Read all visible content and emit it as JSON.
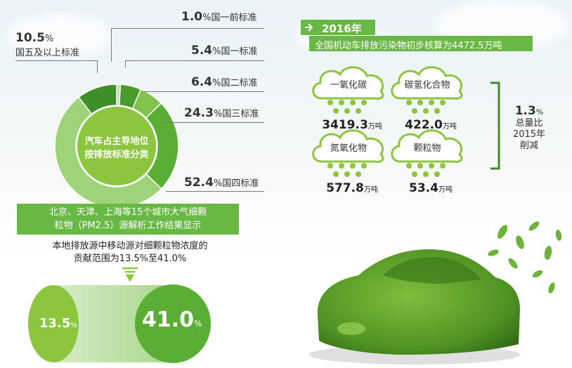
{
  "donut": {
    "center_line1": "汽车占主导地位",
    "center_line2": "按排放标准分类",
    "unit": "%",
    "slices": [
      {
        "value": "1.0",
        "label": "国一前标准",
        "color": "#b9dca0"
      },
      {
        "value": "5.4",
        "label": "国一标准",
        "color": "#4a9a2c"
      },
      {
        "value": "6.4",
        "label": "国二标准",
        "color": "#7fc24e"
      },
      {
        "value": "24.3",
        "label": "国三标准",
        "color": "#5aae36"
      },
      {
        "value": "52.4",
        "label": "国四标准",
        "color": "#9fd37a"
      },
      {
        "value": "10.5",
        "label": "国五及以上标准",
        "color": "#3f8f26"
      }
    ]
  },
  "chart_data": {
    "type": "pie",
    "title": "汽车占主导地位 按排放标准分类",
    "categories": [
      "国一前标准",
      "国一标准",
      "国二标准",
      "国三标准",
      "国四标准",
      "国五及以上标准"
    ],
    "values": [
      1.0,
      5.4,
      6.4,
      24.3,
      52.4,
      10.5
    ],
    "unit": "%"
  },
  "emissions": {
    "year": "2016年",
    "subtitle": "全国机动车排放污染物初步核算为4472.5万吨",
    "unit": "万吨",
    "items": [
      {
        "name": "一氧化碳",
        "value": "3419.3"
      },
      {
        "name": "碳氢化合物",
        "value": "422.0"
      },
      {
        "name": "氮氧化物",
        "value": "577.8"
      },
      {
        "name": "颗粒物",
        "value": "53.4"
      }
    ],
    "reduction_value": "1.3",
    "reduction_unit": "%",
    "reduction_line1": "总量比",
    "reduction_line2": "2015年",
    "reduction_line3": "削减"
  },
  "pm25": {
    "banner_line1": "北京、天津、上海等15个城市大气细颗",
    "banner_line2": "粒物（PM2.5）源解析工作结果显示",
    "desc_line1": "本地排放源中移动源对细颗粒物浓度的",
    "desc_line2": "贡献范围为13.5%至41.0%",
    "low": "13.5",
    "high": "41.0",
    "unit": "%"
  },
  "colors": {
    "accent": "#69b845",
    "dark_green": "#3f8f26",
    "light_green": "#9fd37a"
  }
}
